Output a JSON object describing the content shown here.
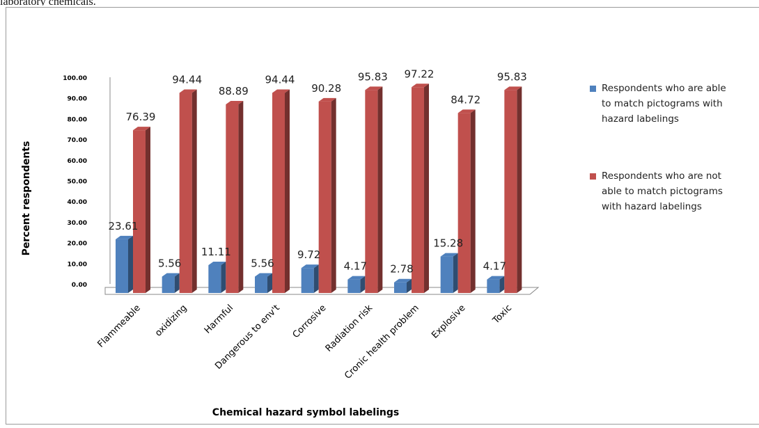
{
  "caption": "laboratory chemicals.",
  "chart_data": {
    "type": "bar",
    "title": "",
    "xlabel": "Chemical hazard symbol labelings",
    "ylabel": "Percent respondents",
    "ylim": [
      0,
      100
    ],
    "yticks": [
      "0.00",
      "10.00",
      "20.00",
      "30.00",
      "40.00",
      "50.00",
      "60.00",
      "70.00",
      "80.00",
      "90.00",
      "100.00"
    ],
    "categories": [
      "Flammeable",
      "oxidizing",
      "Harmful",
      "Dangerous to env't",
      "Corrosive",
      "Radiation risk",
      "Cronic health problem",
      "Explosive",
      "Toxic"
    ],
    "series": [
      {
        "name": "Respondents who are able to match pictograms with hazard labelings",
        "legend_lines": [
          "Respondents who are able",
          "to match pictograms with",
          "hazard labelings"
        ],
        "values": [
          23.61,
          5.56,
          11.11,
          5.56,
          9.72,
          4.17,
          2.78,
          15.28,
          4.17
        ],
        "labels": [
          "23.61",
          "5.56",
          "11.11",
          "5.56",
          "9.72",
          "4.17",
          "2.78",
          "15.28",
          "4.17"
        ],
        "color": "#4f81bd"
      },
      {
        "name": "Respondents who are not able to match pictograms with hazard labelings",
        "legend_lines": [
          "Respondents who are not",
          "able to match pictograms",
          "with hazard labelings"
        ],
        "values": [
          76.39,
          94.44,
          88.89,
          94.44,
          90.28,
          95.83,
          97.22,
          84.72,
          95.83
        ],
        "labels": [
          "76.39",
          "94.44",
          "88.89",
          "94.44",
          "90.28",
          "95.83",
          "97.22",
          "84.72",
          "95.83"
        ],
        "color": "#c0504d"
      }
    ],
    "legend_position": "right",
    "grid": false
  }
}
